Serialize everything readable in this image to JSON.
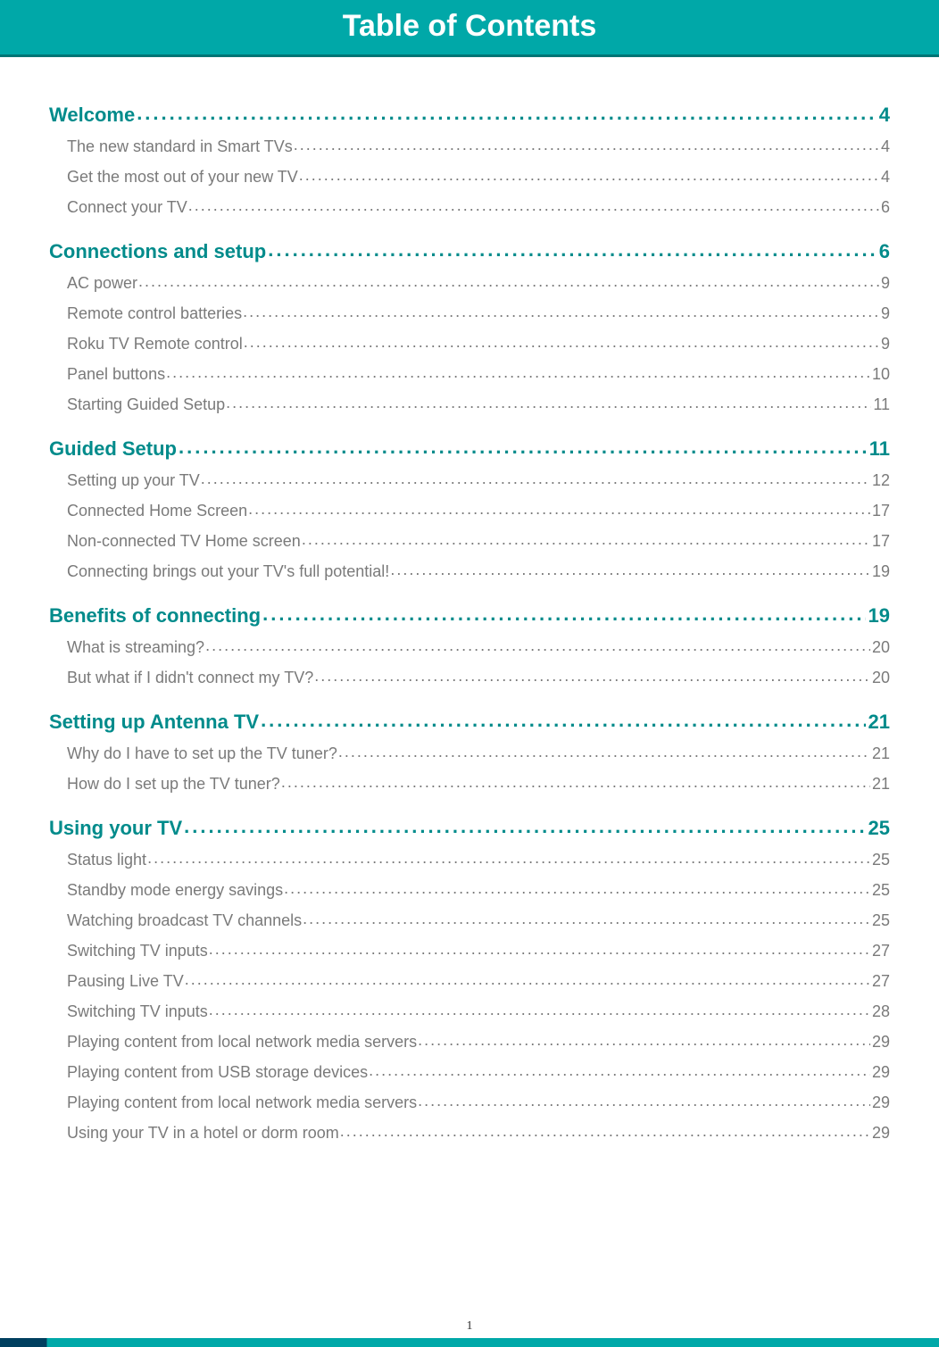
{
  "header": {
    "title": "Table of Contents"
  },
  "colors": {
    "header_bg": "#00a8a8",
    "header_border": "#007575",
    "heading_color": "#008b8b",
    "sub_color": "#7a7a7a",
    "footer_dark": "#003f5f",
    "footer_light": "#00a8a8"
  },
  "sections": [
    {
      "title": "Welcome",
      "page": "4",
      "items": [
        {
          "title": "The new standard in Smart TVs",
          "page": "4"
        },
        {
          "title": "Get the most out of your new TV",
          "page": "4"
        },
        {
          "title": "Connect your TV",
          "page": "6"
        }
      ]
    },
    {
      "title": "Connections and setup",
      "page": "6",
      "items": [
        {
          "title": "AC power",
          "page": "9"
        },
        {
          "title": "Remote control batteries",
          "page": "9"
        },
        {
          "title": "Roku TV Remote control",
          "page": "9"
        },
        {
          "title": "Panel buttons",
          "page": "10"
        },
        {
          "title": "Starting Guided Setup",
          "page": "11"
        }
      ]
    },
    {
      "title": "Guided Setup",
      "page": "11",
      "items": [
        {
          "title": "Setting up your TV",
          "page": "12"
        },
        {
          "title": "Connected Home Screen",
          "page": "17"
        },
        {
          "title": "Non-connected TV Home screen",
          "page": "17"
        },
        {
          "title": "Connecting brings out your TV's full potential!",
          "page": "19"
        }
      ]
    },
    {
      "title": "Benefits of connecting",
      "page": "19",
      "items": [
        {
          "title": "What is streaming?",
          "page": "20"
        },
        {
          "title": "But what if I didn't connect my TV?",
          "page": "20"
        }
      ]
    },
    {
      "title": "Setting up Antenna TV",
      "page": "21",
      "items": [
        {
          "title": "Why do I have to set up the TV tuner?",
          "page": "21"
        },
        {
          "title": "How do I set up the TV tuner?",
          "page": "21"
        }
      ]
    },
    {
      "title": "Using your TV",
      "page": "25",
      "items": [
        {
          "title": "Status light",
          "page": "25"
        },
        {
          "title": "Standby mode energy savings",
          "page": "25"
        },
        {
          "title": "Watching broadcast TV channels",
          "page": "25"
        },
        {
          "title": "Switching TV inputs",
          "page": "27"
        },
        {
          "title": "Pausing Live TV",
          "page": "27"
        },
        {
          "title": "Switching TV inputs",
          "page": "28"
        },
        {
          "title": "Playing content from local network media servers",
          "page": "29"
        },
        {
          "title": "Playing content from USB storage devices",
          "page": "29"
        },
        {
          "title": "Playing content from local network media servers",
          "page": "29"
        },
        {
          "title": "Using your TV in a hotel or dorm room",
          "page": "29"
        }
      ]
    }
  ],
  "footer": {
    "page_number": "1"
  }
}
